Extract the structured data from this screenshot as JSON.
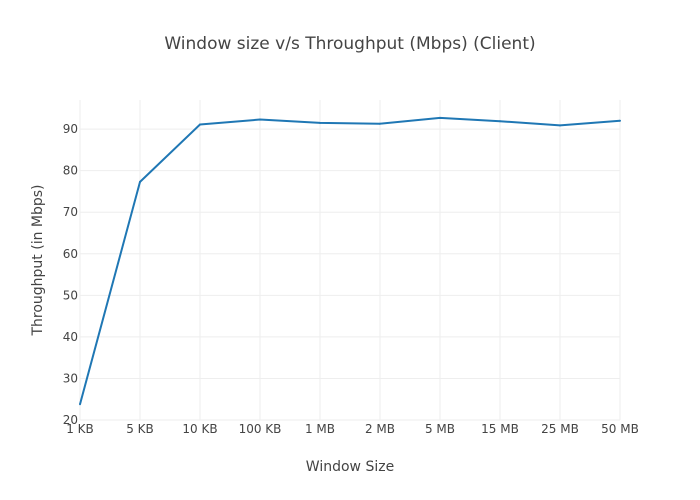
{
  "chart_data": {
    "type": "line",
    "title": "Window size v/s Throughput (Mbps) (Client)",
    "xlabel": "Window Size",
    "ylabel": "Throughput (in Mbps)",
    "categories": [
      "1 KB",
      "5 KB",
      "10 KB",
      "100 KB",
      "1 MB",
      "2 MB",
      "5 MB",
      "15 MB",
      "25 MB",
      "50 MB"
    ],
    "series": [
      {
        "name": "",
        "color": "#1f77b4",
        "values": [
          23.8,
          77.3,
          91.1,
          92.3,
          91.5,
          91.3,
          92.7,
          91.9,
          90.9,
          92.0
        ]
      }
    ],
    "ylim": [
      20,
      97
    ],
    "yticks": [
      20,
      30,
      40,
      50,
      60,
      70,
      80,
      90
    ],
    "grid": true,
    "legend": "none"
  }
}
